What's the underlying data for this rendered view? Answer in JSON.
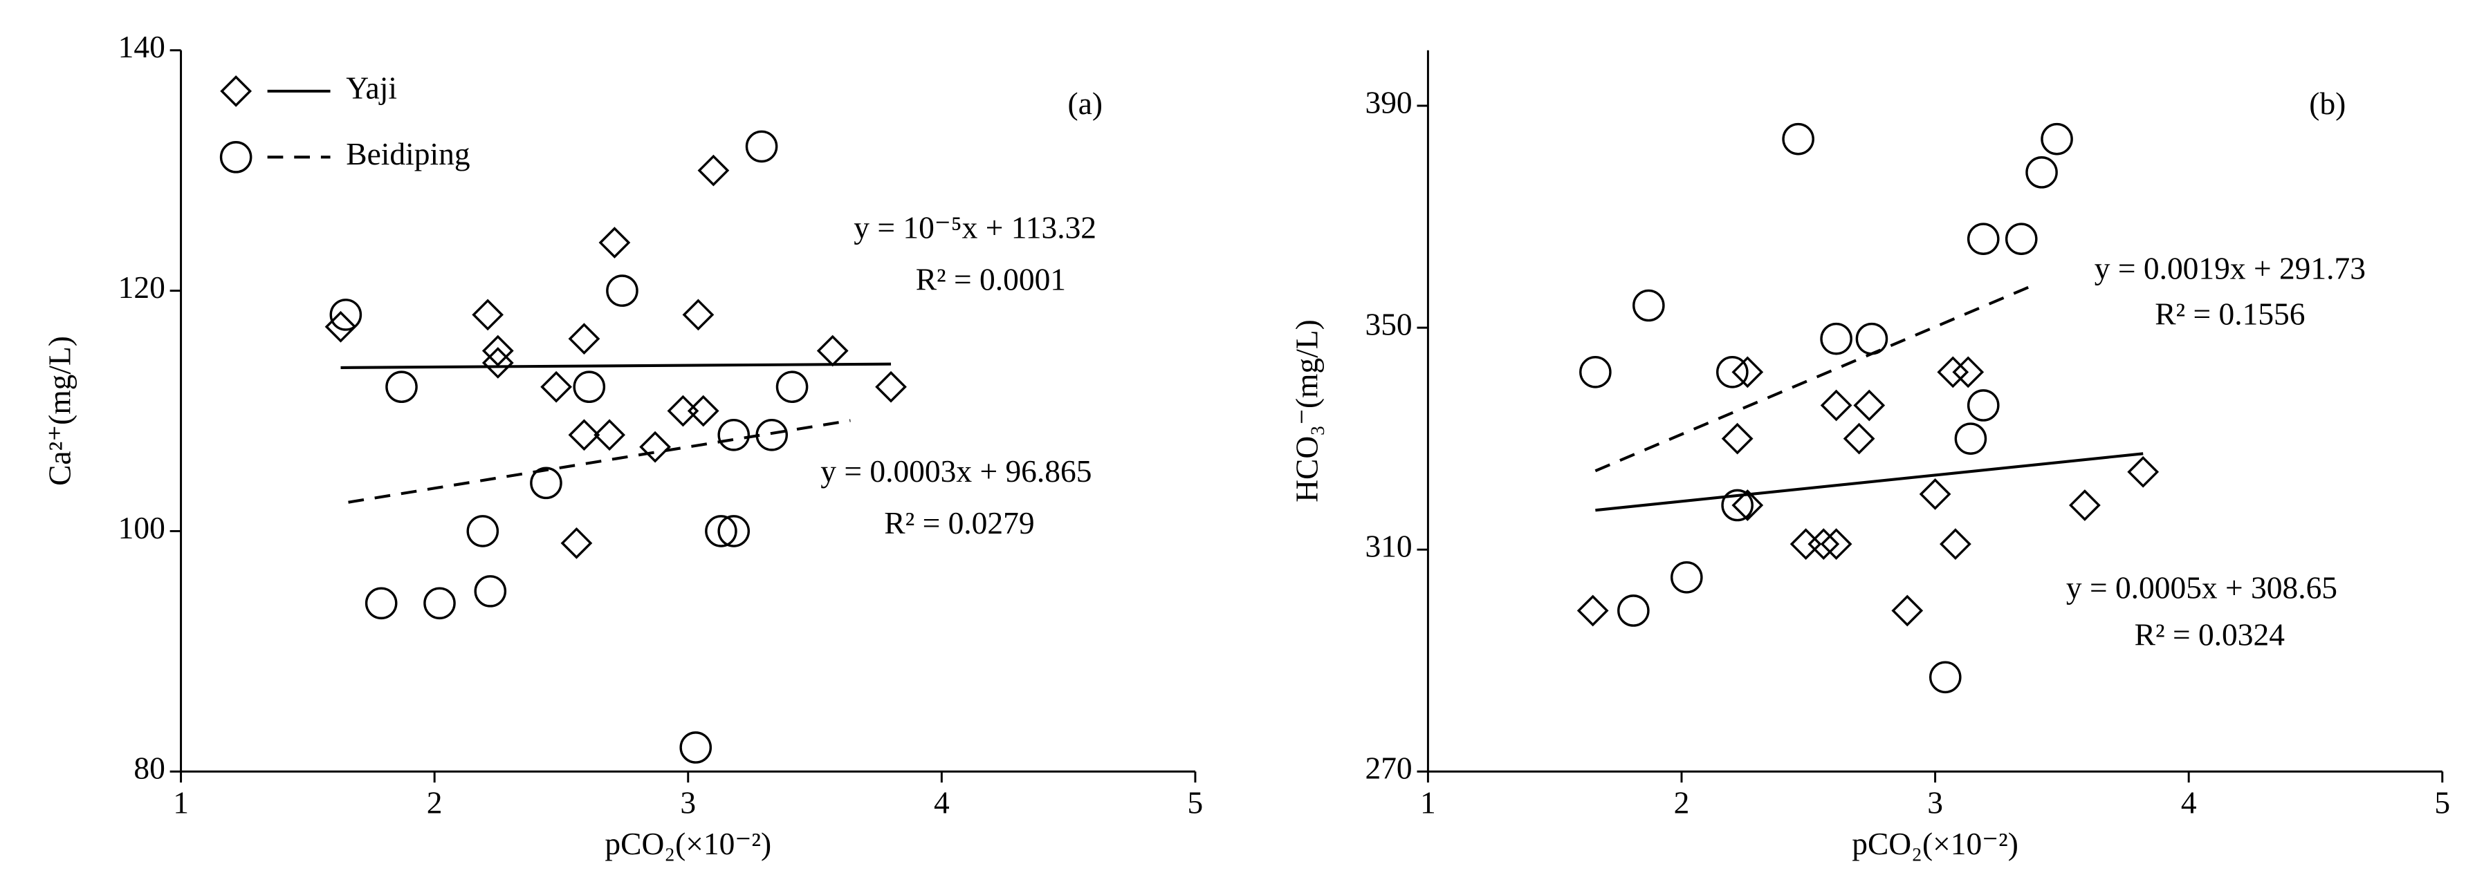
{
  "chart_data": [
    {
      "type": "scatter",
      "panel_label": "(a)",
      "x_label": "pCO₂(×10⁻²)",
      "y_label": "Ca²⁺(mg/L)",
      "xlim": [
        1,
        5
      ],
      "xticks": [
        1,
        2,
        3,
        4,
        5
      ],
      "ylim": [
        80,
        140
      ],
      "yticks": [
        80,
        100,
        120,
        140
      ],
      "legend": "upper left",
      "series": [
        {
          "name": "Yaji",
          "marker": "diamond",
          "color": "#000000",
          "x": [
            1.63,
            2.21,
            2.25,
            2.25,
            2.48,
            2.59,
            2.59,
            2.69,
            2.71,
            2.56,
            2.87,
            2.98,
            3.06,
            3.04,
            3.1,
            3.57,
            3.8
          ],
          "values": [
            117,
            118,
            115,
            114,
            112,
            116,
            108,
            108,
            124,
            99,
            107,
            110,
            110,
            118,
            130,
            115,
            112
          ],
          "fit": {
            "x": [
              1.63,
              3.8
            ],
            "y": [
              113.6,
              113.9
            ],
            "dashed": false,
            "equation": "y = 10⁻⁵x + 113.32",
            "r_squared": "R² = 0.0001"
          }
        },
        {
          "name": "Beidiping",
          "marker": "circle",
          "color": "#000000",
          "x": [
            1.65,
            1.87,
            1.79,
            2.02,
            2.19,
            2.22,
            2.44,
            2.61,
            2.74,
            3.03,
            3.13,
            3.18,
            3.18,
            3.33,
            3.41,
            3.29
          ],
          "values": [
            118,
            112,
            94,
            94,
            100,
            95,
            104,
            112,
            120,
            82,
            100,
            100,
            108,
            108,
            112,
            132
          ],
          "fit": {
            "x": [
              1.66,
              3.64
            ],
            "y": [
              102.4,
              109.2
            ],
            "dashed": true,
            "equation": "y = 0.0003x + 96.865",
            "r_squared": "R² = 0.0279"
          }
        }
      ]
    },
    {
      "type": "scatter",
      "panel_label": "(b)",
      "x_label": "pCO₂(×10⁻²)",
      "y_label": "HCO₃⁻(mg/L)",
      "xlim": [
        1,
        5
      ],
      "xticks": [
        1,
        2,
        3,
        4,
        5
      ],
      "ylim": [
        270,
        400
      ],
      "yticks": [
        270,
        310,
        350,
        390
      ],
      "series": [
        {
          "marker": "diamond",
          "color": "#000000",
          "x": [
            1.65,
            2.22,
            2.26,
            2.26,
            2.49,
            2.56,
            2.61,
            2.61,
            2.7,
            2.74,
            2.89,
            3.0,
            3.07,
            3.13,
            3.08,
            3.59,
            3.82
          ],
          "values": [
            299,
            330,
            342,
            318,
            311,
            311,
            311,
            336,
            330,
            336,
            299,
            320,
            342,
            342,
            311,
            318,
            324
          ],
          "fit": {
            "x": [
              1.66,
              3.82
            ],
            "y": [
              317.1,
              327.3
            ],
            "dashed": false,
            "equation": "y = 0.0005x + 308.65",
            "r_squared": "R² = 0.0324"
          }
        },
        {
          "marker": "circle",
          "color": "#000000",
          "x": [
            1.66,
            1.87,
            1.81,
            2.02,
            2.2,
            2.22,
            2.46,
            2.61,
            2.75,
            3.04,
            3.14,
            3.19,
            3.19,
            3.34,
            3.48,
            3.42
          ],
          "values": [
            342,
            354,
            299,
            305,
            342,
            318,
            384,
            348,
            348,
            287,
            330,
            336,
            366,
            366,
            384,
            378
          ],
          "fit": {
            "x": [
              1.66,
              3.4
            ],
            "y": [
              324.2,
              357.9
            ],
            "dashed": true,
            "equation": "y = 0.0019x + 291.73",
            "r_squared": "R² = 0.1556"
          }
        }
      ]
    }
  ]
}
